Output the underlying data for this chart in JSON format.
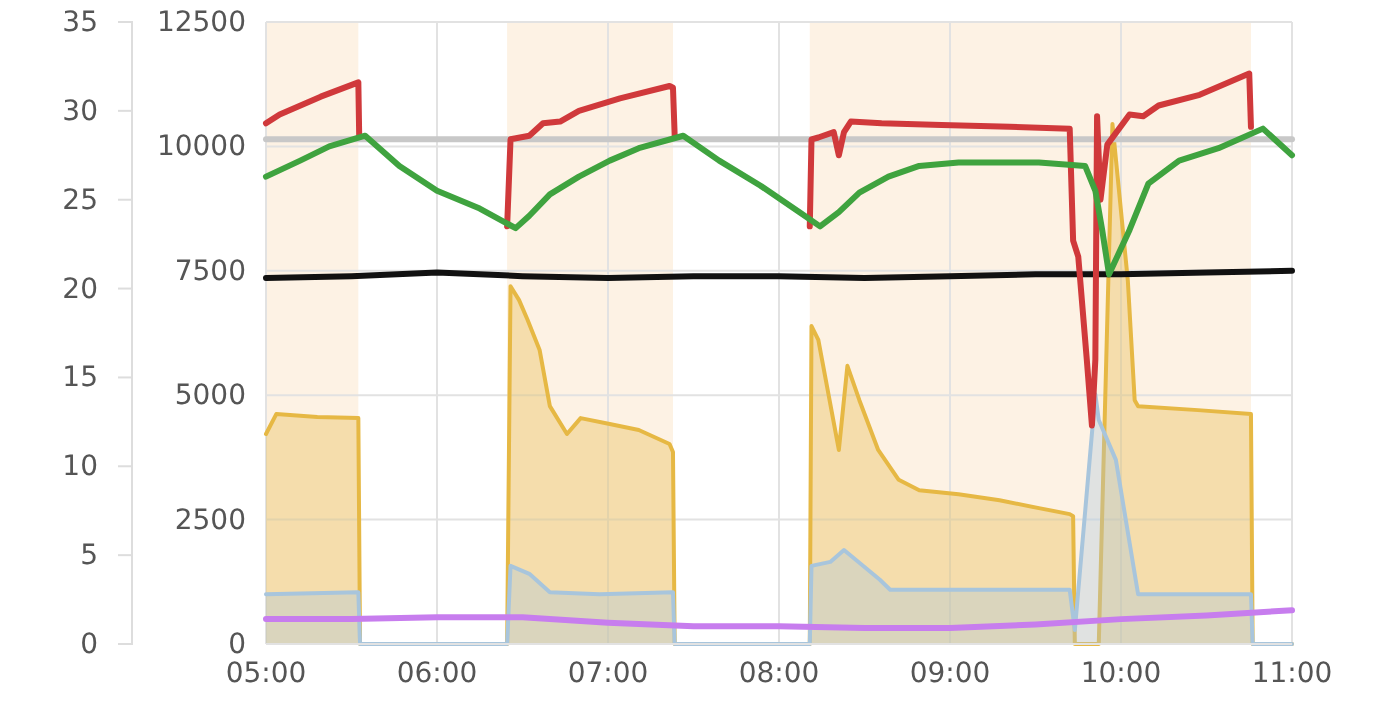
{
  "chart_data": {
    "type": "line",
    "xlim": [
      5,
      11
    ],
    "xticks": [
      {
        "value": 5,
        "label": "05:00"
      },
      {
        "value": 6,
        "label": "06:00"
      },
      {
        "value": 7,
        "label": "07:00"
      },
      {
        "value": 8,
        "label": "08:00"
      },
      {
        "value": 9,
        "label": "09:00"
      },
      {
        "value": 10,
        "label": "10:00"
      },
      {
        "value": 11,
        "label": "11:00"
      }
    ],
    "ylim": [
      0,
      35
    ],
    "yticks": [
      0,
      5,
      10,
      15,
      20,
      25,
      30,
      35
    ],
    "y2lim": [
      0,
      12500
    ],
    "y2ticks": [
      0,
      2500,
      5000,
      7500,
      10000,
      12500
    ],
    "grid": true,
    "marker": "none",
    "bands": [
      {
        "axis": "x",
        "from": 5,
        "to": 5.54,
        "color": "#fdf2e4"
      },
      {
        "axis": "x",
        "from": 6.41,
        "to": 7.38,
        "color": "#fdf2e4"
      },
      {
        "axis": "x",
        "from": 8.18,
        "to": 10.76,
        "color": "#fdf2e4"
      }
    ],
    "series": [
      {
        "type": "area",
        "axis": "y2",
        "color": "#e6b844",
        "x": [
          5.0,
          5.06,
          5.3,
          5.54,
          5.55,
          6.41,
          6.43,
          6.48,
          6.53,
          6.6,
          6.66,
          6.76,
          6.84,
          7.01,
          7.18,
          7.36,
          7.38,
          7.39,
          8.18,
          8.19,
          8.23,
          8.35,
          8.4,
          8.47,
          8.58,
          8.7,
          8.82,
          9.05,
          9.29,
          9.52,
          9.7,
          9.72,
          9.73,
          9.87,
          9.95,
          10.04,
          10.08,
          10.1,
          10.45,
          10.76,
          10.77,
          11.0
        ],
        "values": [
          4220,
          4620,
          4560,
          4540,
          0,
          0,
          7190,
          6910,
          6510,
          5910,
          4780,
          4220,
          4540,
          4420,
          4300,
          4020,
          3860,
          0,
          0,
          6390,
          6110,
          3900,
          5590,
          4900,
          3900,
          3300,
          3090,
          3010,
          2890,
          2730,
          2610,
          2570,
          0,
          0,
          10450,
          7300,
          4900,
          4780,
          4700,
          4620,
          0,
          0
        ]
      },
      {
        "type": "area",
        "axis": "y2",
        "color": "#a8c5dc",
        "x": [
          5.0,
          5.54,
          5.55,
          6.41,
          6.43,
          6.54,
          6.66,
          6.95,
          7.38,
          7.39,
          8.18,
          8.19,
          8.3,
          8.38,
          8.59,
          8.65,
          9.05,
          9.7,
          9.73,
          9.85,
          9.87,
          9.97,
          10.1,
          10.76,
          10.77,
          11.0
        ],
        "values": [
          1000,
          1040,
          0,
          0,
          1570,
          1410,
          1040,
          1000,
          1040,
          0,
          0,
          1570,
          1650,
          1890,
          1290,
          1090,
          1090,
          1090,
          280,
          5020,
          4500,
          3700,
          1000,
          1000,
          0,
          0
        ]
      },
      {
        "axis": "y",
        "color": "#c77dee",
        "x": [
          5,
          5.5,
          6,
          6.5,
          7,
          7.5,
          8,
          8.5,
          9,
          9.5,
          10,
          10.5,
          11
        ],
        "values": [
          1.4,
          1.4,
          1.5,
          1.5,
          1.2,
          1.0,
          1.0,
          0.9,
          0.9,
          1.1,
          1.4,
          1.6,
          1.9
        ]
      },
      {
        "axis": "y",
        "color": "#c8c8c8",
        "x": [
          5,
          11
        ],
        "values": [
          28.4,
          28.4
        ]
      },
      {
        "axis": "y",
        "color": "#111111",
        "x": [
          5,
          5.5,
          6,
          6.5,
          7,
          7.5,
          8,
          8.5,
          9,
          9.5,
          10,
          10.5,
          11
        ],
        "values": [
          20.6,
          20.7,
          20.9,
          20.7,
          20.6,
          20.7,
          20.7,
          20.6,
          20.7,
          20.8,
          20.8,
          20.9,
          21.0
        ]
      },
      {
        "axis": "y",
        "color": "#d0393b",
        "x": [
          5.0,
          5.08,
          5.32,
          5.54,
          5.545,
          5.55,
          6.41,
          6.43,
          6.54,
          6.62,
          6.72,
          6.83,
          7.07,
          7.36,
          7.38,
          7.39,
          7.4,
          8.18,
          8.19,
          8.23,
          8.32,
          8.35,
          8.38,
          8.42,
          8.6,
          8.95,
          9.35,
          9.7,
          9.72,
          9.75,
          9.8,
          9.83,
          9.85,
          9.86,
          9.88,
          9.92,
          10.05,
          10.13,
          10.22,
          10.46,
          10.75,
          10.76
        ],
        "values": [
          29.3,
          29.8,
          30.8,
          31.6,
          28.6,
          null,
          23.5,
          28.4,
          28.6,
          29.3,
          29.4,
          30.0,
          30.7,
          31.4,
          31.3,
          28.6,
          null,
          23.5,
          28.4,
          28.5,
          28.8,
          27.5,
          28.8,
          29.4,
          29.3,
          29.2,
          29.1,
          29.0,
          22.7,
          21.8,
          16.0,
          12.3,
          16.0,
          29.7,
          25.0,
          28.1,
          29.8,
          29.7,
          30.3,
          30.9,
          32.1,
          29.1
        ]
      },
      {
        "axis": "y",
        "color": "#3fa33f",
        "x": [
          5.0,
          5.2,
          5.37,
          5.58,
          5.78,
          6.0,
          6.25,
          6.46,
          6.54,
          6.66,
          6.83,
          7.01,
          7.18,
          7.44,
          7.65,
          7.89,
          8.12,
          8.24,
          8.35,
          8.47,
          8.64,
          8.82,
          9.05,
          9.52,
          9.79,
          9.85,
          9.89,
          9.93,
          10.05,
          10.16,
          10.34,
          10.57,
          10.83,
          11.0
        ],
        "values": [
          26.3,
          27.2,
          28.0,
          28.6,
          26.9,
          25.5,
          24.5,
          23.4,
          24.1,
          25.3,
          26.3,
          27.2,
          27.9,
          28.6,
          27.2,
          25.8,
          24.3,
          23.5,
          24.3,
          25.4,
          26.3,
          26.9,
          27.1,
          27.1,
          26.9,
          25.5,
          23.3,
          20.8,
          23.3,
          25.9,
          27.2,
          27.9,
          29.0,
          27.5
        ]
      }
    ]
  }
}
